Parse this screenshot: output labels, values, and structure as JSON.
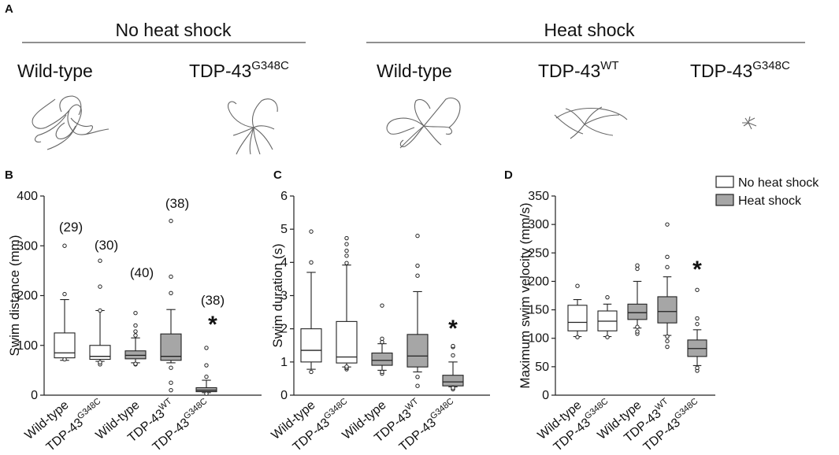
{
  "panel_a": {
    "label": "A",
    "groups": [
      {
        "title": "No heat shock",
        "genotypes": [
          {
            "name": "Wild-type",
            "sup": ""
          },
          {
            "name": "TDP-43",
            "sup": "G348C"
          }
        ]
      },
      {
        "title": "Heat shock",
        "genotypes": [
          {
            "name": "Wild-type",
            "sup": ""
          },
          {
            "name": "TDP-43",
            "sup": "WT"
          },
          {
            "name": "TDP-43",
            "sup": "G348C"
          }
        ]
      }
    ]
  },
  "legend": {
    "items": [
      {
        "label": "No heat shock",
        "color": "#ffffff"
      },
      {
        "label": "Heat shock",
        "color": "#a6a6a6"
      }
    ]
  },
  "colors": {
    "no_heat_shock": "#ffffff",
    "heat_shock": "#a6a6a6",
    "stroke": "#222222"
  },
  "chart_data": [
    {
      "panel": "B",
      "type": "box",
      "ylabel": "Swim distance (mm)",
      "ylim": [
        0,
        400
      ],
      "yticks": [
        0,
        100,
        200,
        300,
        400
      ],
      "categories": [
        {
          "name": "Wild-type",
          "sup": ""
        },
        {
          "name": "TDP-43",
          "sup": "G348C"
        },
        {
          "name": "Wild-type",
          "sup": ""
        },
        {
          "name": "TDP-43",
          "sup": "WT"
        },
        {
          "name": "TDP-43",
          "sup": "G348C"
        }
      ],
      "condition": [
        "No heat shock",
        "No heat shock",
        "Heat shock",
        "Heat shock",
        "Heat shock"
      ],
      "n_labels": [
        "(29)",
        "(30)",
        "(40)",
        "(38)",
        "(38)"
      ],
      "significance": [
        false,
        false,
        false,
        false,
        true
      ],
      "significance_mark": "*",
      "boxes": [
        {
          "wlo": 70,
          "q1": 75,
          "med": 85,
          "q3": 125,
          "whi": 192,
          "out": [
            72,
            203,
            300
          ]
        },
        {
          "wlo": 68,
          "q1": 72,
          "med": 78,
          "q3": 100,
          "whi": 170,
          "out": [
            62,
            66,
            170,
            218,
            270
          ]
        },
        {
          "wlo": 65,
          "q1": 73,
          "med": 80,
          "q3": 89,
          "whi": 115,
          "out": [
            62,
            63,
            120,
            128,
            140,
            165
          ]
        },
        {
          "wlo": 65,
          "q1": 70,
          "med": 78,
          "q3": 123,
          "whi": 172,
          "out": [
            10,
            25,
            55,
            205,
            238,
            350
          ]
        },
        {
          "wlo": 5,
          "q1": 7,
          "med": 10,
          "q3": 15,
          "whi": 30,
          "out": [
            3,
            37,
            60,
            95
          ]
        }
      ]
    },
    {
      "panel": "C",
      "type": "box",
      "ylabel": "Swim duration (s)",
      "ylim": [
        0,
        6
      ],
      "yticks": [
        0,
        1,
        2,
        3,
        4,
        5,
        6
      ],
      "categories": [
        {
          "name": "Wild-type",
          "sup": ""
        },
        {
          "name": "TDP-43",
          "sup": "G348C"
        },
        {
          "name": "Wild-type",
          "sup": ""
        },
        {
          "name": "TDP-43",
          "sup": "WT"
        },
        {
          "name": "TDP-43",
          "sup": "G348C"
        }
      ],
      "condition": [
        "No heat shock",
        "No heat shock",
        "Heat shock",
        "Heat shock",
        "Heat shock"
      ],
      "n_labels": [],
      "significance": [
        false,
        false,
        false,
        false,
        true
      ],
      "significance_mark": "*",
      "boxes": [
        {
          "wlo": 0.78,
          "q1": 1.0,
          "med": 1.35,
          "q3": 2.0,
          "whi": 3.7,
          "out": [
            0.7,
            4.0,
            4.93
          ]
        },
        {
          "wlo": 0.85,
          "q1": 0.97,
          "med": 1.15,
          "q3": 2.22,
          "whi": 3.92,
          "out": [
            0.78,
            0.82,
            0.86,
            3.98,
            4.2,
            4.35,
            4.55,
            4.73
          ]
        },
        {
          "wlo": 0.75,
          "q1": 0.9,
          "med": 1.05,
          "q3": 1.27,
          "whi": 1.55,
          "out": [
            0.65,
            0.7,
            1.6,
            1.7,
            2.7
          ]
        },
        {
          "wlo": 0.7,
          "q1": 0.85,
          "med": 1.18,
          "q3": 1.83,
          "whi": 3.12,
          "out": [
            0.28,
            0.55,
            3.6,
            3.9,
            4.8
          ]
        },
        {
          "wlo": 0.25,
          "q1": 0.28,
          "med": 0.4,
          "q3": 0.6,
          "whi": 1.0,
          "out": [
            0.18,
            0.22,
            1.2,
            1.45,
            1.48
          ]
        }
      ]
    },
    {
      "panel": "D",
      "type": "box",
      "ylabel": "Maximum swim velocity (mm/s)",
      "ylim": [
        0,
        350
      ],
      "yticks": [
        0,
        50,
        100,
        150,
        200,
        250,
        300,
        350
      ],
      "categories": [
        {
          "name": "Wild-type",
          "sup": ""
        },
        {
          "name": "TDP-43",
          "sup": "G348C"
        },
        {
          "name": "Wild-type",
          "sup": ""
        },
        {
          "name": "TDP-43",
          "sup": "WT"
        },
        {
          "name": "TDP-43",
          "sup": "G348C"
        }
      ],
      "condition": [
        "No heat shock",
        "No heat shock",
        "Heat shock",
        "Heat shock",
        "Heat shock"
      ],
      "n_labels": [],
      "significance": [
        false,
        false,
        false,
        false,
        true
      ],
      "significance_mark": "*",
      "boxes": [
        {
          "wlo": 103,
          "q1": 113,
          "med": 128,
          "q3": 158,
          "whi": 168,
          "out": [
            102,
            192
          ]
        },
        {
          "wlo": 103,
          "q1": 113,
          "med": 130,
          "q3": 148,
          "whi": 160,
          "out": [
            102,
            172
          ]
        },
        {
          "wlo": 118,
          "q1": 133,
          "med": 145,
          "q3": 160,
          "whi": 200,
          "out": [
            108,
            112,
            120,
            222,
            228
          ]
        },
        {
          "wlo": 105,
          "q1": 127,
          "med": 147,
          "q3": 173,
          "whi": 208,
          "out": [
            85,
            95,
            103,
            225,
            243,
            300
          ]
        },
        {
          "wlo": 52,
          "q1": 68,
          "med": 82,
          "q3": 97,
          "whi": 115,
          "out": [
            43,
            48,
            125,
            135,
            185
          ]
        }
      ]
    }
  ]
}
